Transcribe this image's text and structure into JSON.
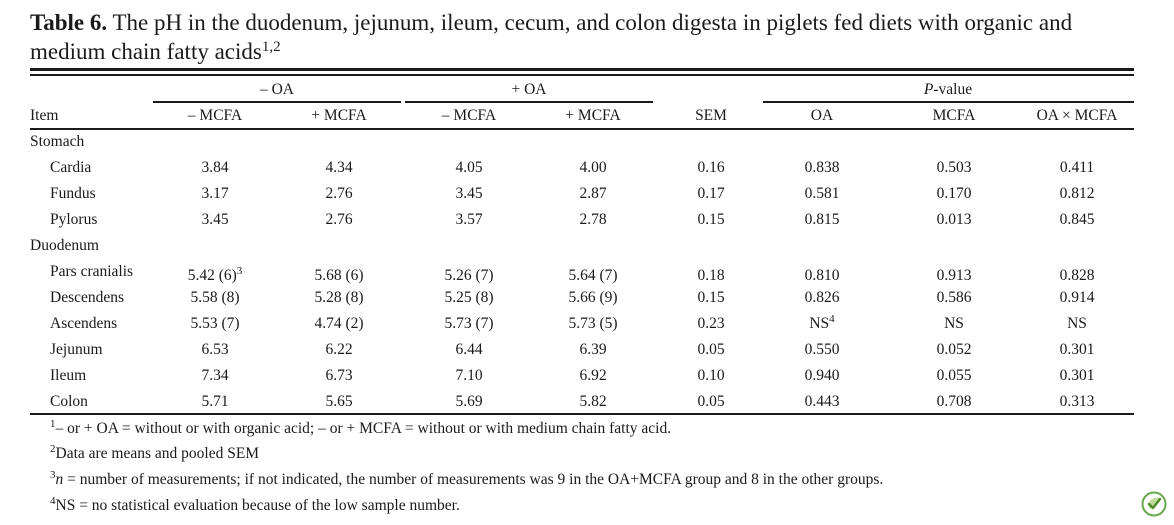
{
  "caption": {
    "label": "Table 6.",
    "text": " The pH in the duodenum, jejunum, ileum, cecum, and colon digesta in piglets fed diets with organic and medium chain fatty acids",
    "sup": "1,2"
  },
  "header": {
    "group_minus_oa": "– OA",
    "group_plus_oa": "+ OA",
    "pvalue_prefix": "P",
    "pvalue_suffix": "-value",
    "item": "Item",
    "cols": [
      "– MCFA",
      "+ MCFA",
      "– MCFA",
      "+ MCFA",
      "SEM",
      "OA",
      "MCFA",
      "OA × MCFA"
    ]
  },
  "rows": [
    {
      "label": "Stomach",
      "section": true
    },
    {
      "label": "Cardia",
      "values": [
        "3.84",
        "4.34",
        "4.05",
        "4.00",
        "0.16",
        "0.838",
        "0.503",
        "0.411"
      ]
    },
    {
      "label": "Fundus",
      "values": [
        "3.17",
        "2.76",
        "3.45",
        "2.87",
        "0.17",
        "0.581",
        "0.170",
        "0.812"
      ]
    },
    {
      "label": "Pylorus",
      "values": [
        "3.45",
        "2.76",
        "3.57",
        "2.78",
        "0.15",
        "0.815",
        "0.013",
        "0.845"
      ]
    },
    {
      "label": "Duodenum",
      "section": true
    },
    {
      "label": "Pars cranialis",
      "values": [
        "5.42 (6)",
        "5.68 (6)",
        "5.26 (7)",
        "5.64 (7)",
        "0.18",
        "0.810",
        "0.913",
        "0.828"
      ],
      "sup0": "3"
    },
    {
      "label": "Descendens",
      "values": [
        "5.58 (8)",
        "5.28 (8)",
        "5.25 (8)",
        "5.66 (9)",
        "0.15",
        "0.826",
        "0.586",
        "0.914"
      ]
    },
    {
      "label": "Ascendens",
      "values": [
        "5.53 (7)",
        "4.74 (2)",
        "5.73 (7)",
        "5.73 (5)",
        "0.23",
        "NS",
        "NS",
        "NS"
      ],
      "sup5": "4"
    },
    {
      "label": "Jejunum",
      "values": [
        "6.53",
        "6.22",
        "6.44",
        "6.39",
        "0.05",
        "0.550",
        "0.052",
        "0.301"
      ]
    },
    {
      "label": "Ileum",
      "values": [
        "7.34",
        "6.73",
        "7.10",
        "6.92",
        "0.10",
        "0.940",
        "0.055",
        "0.301"
      ]
    },
    {
      "label": "Colon",
      "values": [
        "5.71",
        "5.65",
        "5.69",
        "5.82",
        "0.05",
        "0.443",
        "0.708",
        "0.313"
      ]
    }
  ],
  "footnotes": [
    {
      "sup": "1",
      "text": "– or + OA = without or with organic acid; – or + MCFA = without or with medium chain fatty acid."
    },
    {
      "sup": "2",
      "text": "Data are means and pooled SEM"
    },
    {
      "sup": "3",
      "ital": "n",
      "text": " = number of measurements; if not indicated, the number of measurements was 9 in the OA+MCFA group and 8 in the other groups."
    },
    {
      "sup": "4",
      "text": "NS = no statistical evaluation because of the low sample number."
    }
  ],
  "logo_icon": "leaf-check-logo-icon"
}
